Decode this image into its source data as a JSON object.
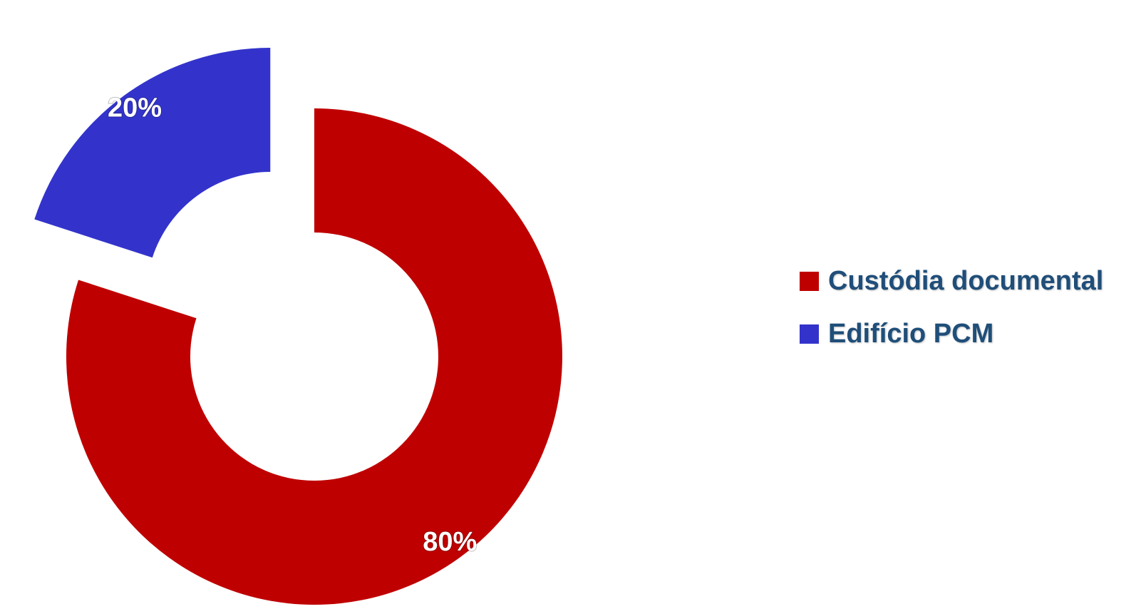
{
  "chart_data": {
    "type": "pie",
    "variant": "donut",
    "exploded": true,
    "categories": [
      "Custódia documental",
      "Edifício PCM"
    ],
    "values": [
      80,
      20
    ],
    "data_labels": [
      "80%",
      "20%"
    ],
    "colors": [
      "#bf0000",
      "#3333cc"
    ],
    "legend_position": "right",
    "legend_color": "#1f4e79",
    "title": ""
  }
}
